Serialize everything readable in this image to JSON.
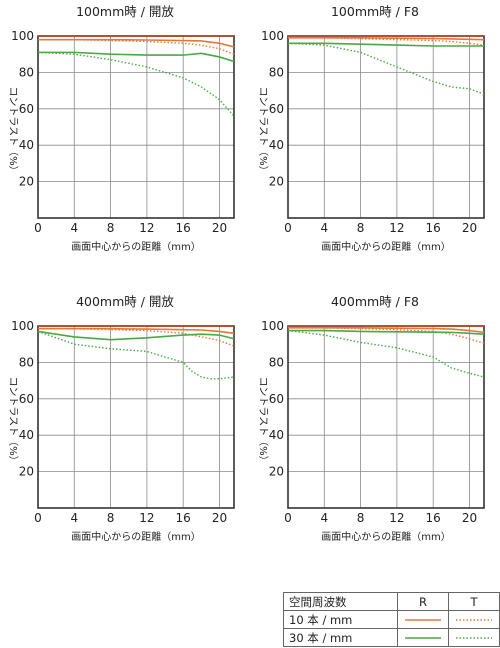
{
  "chart_data": [
    {
      "type": "line",
      "title": "100mm時 / 開放",
      "xlabel": "画面中心からの距離（mm）",
      "ylabel": "コントラスト（%）",
      "xticks": [
        0,
        4,
        8,
        12,
        16,
        20
      ],
      "yticks": [
        20,
        40,
        60,
        80,
        100
      ],
      "xlim": [
        0,
        21.6
      ],
      "ylim": [
        0,
        100
      ],
      "series": [
        {
          "name": "10本/mm R",
          "x": [
            0,
            4,
            8,
            12,
            16,
            18,
            20,
            21.6
          ],
          "y": [
            98,
            98,
            98,
            97.8,
            97.5,
            97.3,
            96,
            94
          ]
        },
        {
          "name": "10本/mm T",
          "x": [
            0,
            4,
            8,
            12,
            16,
            18,
            20,
            21.6
          ],
          "y": [
            98,
            98,
            97.5,
            97,
            96,
            95,
            93,
            90
          ]
        },
        {
          "name": "30本/mm R",
          "x": [
            0,
            4,
            8,
            12,
            16,
            18,
            20,
            21.6
          ],
          "y": [
            91,
            91,
            90,
            89.5,
            89.5,
            90.5,
            88.5,
            86
          ]
        },
        {
          "name": "30本/mm T",
          "x": [
            0,
            4,
            8,
            12,
            16,
            18,
            20,
            21.6
          ],
          "y": [
            91,
            90,
            87,
            83,
            77,
            72,
            65,
            56
          ]
        }
      ]
    },
    {
      "type": "line",
      "title": "100mm時 / F8",
      "xlabel": "画面中心からの距離（mm）",
      "ylabel": "コントラスト（%）",
      "xticks": [
        0,
        4,
        8,
        12,
        16,
        20
      ],
      "yticks": [
        20,
        40,
        60,
        80,
        100
      ],
      "xlim": [
        0,
        21.6
      ],
      "ylim": [
        0,
        100
      ],
      "series": [
        {
          "name": "10本/mm R",
          "x": [
            0,
            4,
            8,
            12,
            16,
            18,
            20,
            21.6
          ],
          "y": [
            99,
            99,
            99,
            98.8,
            98.6,
            98.4,
            98.2,
            98
          ]
        },
        {
          "name": "10本/mm T",
          "x": [
            0,
            4,
            8,
            12,
            16,
            18,
            20,
            21.6
          ],
          "y": [
            99,
            99,
            98.5,
            98,
            97.5,
            97,
            96,
            95
          ]
        },
        {
          "name": "30本/mm R",
          "x": [
            0,
            4,
            8,
            12,
            16,
            18,
            20,
            21.6
          ],
          "y": [
            96,
            96,
            95.5,
            95,
            94.5,
            94.5,
            94.5,
            94.5
          ]
        },
        {
          "name": "30本/mm T",
          "x": [
            0,
            4,
            8,
            12,
            16,
            18,
            20,
            21.6
          ],
          "y": [
            96,
            95,
            91,
            83,
            75,
            72,
            71,
            68
          ]
        }
      ]
    },
    {
      "type": "line",
      "title": "400mm時 / 開放",
      "xlabel": "画面中心からの距離（mm）",
      "ylabel": "コントラスト（%）",
      "xticks": [
        0,
        4,
        8,
        12,
        16,
        20
      ],
      "yticks": [
        20,
        40,
        60,
        80,
        100
      ],
      "xlim": [
        0,
        21.6
      ],
      "ylim": [
        0,
        100
      ],
      "series": [
        {
          "name": "10本/mm R",
          "x": [
            0,
            4,
            8,
            12,
            16,
            18,
            20,
            21.6
          ],
          "y": [
            98.5,
            98.5,
            98.5,
            98.3,
            98,
            97.8,
            97,
            96
          ]
        },
        {
          "name": "10本/mm T",
          "x": [
            0,
            4,
            8,
            12,
            16,
            18,
            20,
            21.6
          ],
          "y": [
            98.5,
            98.5,
            98,
            97.5,
            96,
            94,
            92,
            89
          ]
        },
        {
          "name": "30本/mm R",
          "x": [
            0,
            4,
            8,
            12,
            16,
            18,
            20,
            21.6
          ],
          "y": [
            97,
            94,
            92.5,
            93.5,
            95,
            95.5,
            95,
            93
          ]
        },
        {
          "name": "30本/mm T",
          "x": [
            0,
            4,
            8,
            12,
            16,
            17,
            18,
            19,
            20,
            21.6
          ],
          "y": [
            97,
            90,
            87.5,
            86,
            80,
            75,
            72,
            71,
            71,
            72
          ]
        }
      ]
    },
    {
      "type": "line",
      "title": "400mm時 / F8",
      "xlabel": "画面中心からの距離（mm）",
      "ylabel": "コントラスト（%）",
      "xticks": [
        0,
        4,
        8,
        12,
        16,
        20
      ],
      "yticks": [
        20,
        40,
        60,
        80,
        100
      ],
      "xlim": [
        0,
        21.6
      ],
      "ylim": [
        0,
        100
      ],
      "series": [
        {
          "name": "10本/mm R",
          "x": [
            0,
            4,
            8,
            12,
            16,
            18,
            20,
            21.6
          ],
          "y": [
            99,
            99,
            99,
            98.8,
            98.6,
            98.3,
            97.5,
            96.5
          ]
        },
        {
          "name": "10本/mm T",
          "x": [
            0,
            4,
            8,
            12,
            16,
            18,
            20,
            21.6
          ],
          "y": [
            99,
            99,
            98.5,
            98,
            97,
            95.5,
            93,
            90.5
          ]
        },
        {
          "name": "30本/mm R",
          "x": [
            0,
            4,
            8,
            12,
            16,
            18,
            20,
            21.6
          ],
          "y": [
            97.5,
            97.5,
            97,
            96.8,
            96.6,
            96.5,
            96,
            95.5
          ]
        },
        {
          "name": "30本/mm T",
          "x": [
            0,
            4,
            8,
            12,
            16,
            18,
            20,
            21.6
          ],
          "y": [
            97.5,
            95,
            91,
            88,
            83,
            77,
            74,
            72
          ]
        }
      ]
    }
  ],
  "legend": {
    "header": "空間周波数",
    "col_r": "R",
    "col_t": "T",
    "row1": "10 本 / mm",
    "row2": "30 本 / mm"
  },
  "colors": {
    "freq10": "#e07a3a",
    "freq30": "#4aa845",
    "top_line": "#b84a28",
    "axis": "#333333",
    "grid": "#8a8a8a"
  }
}
